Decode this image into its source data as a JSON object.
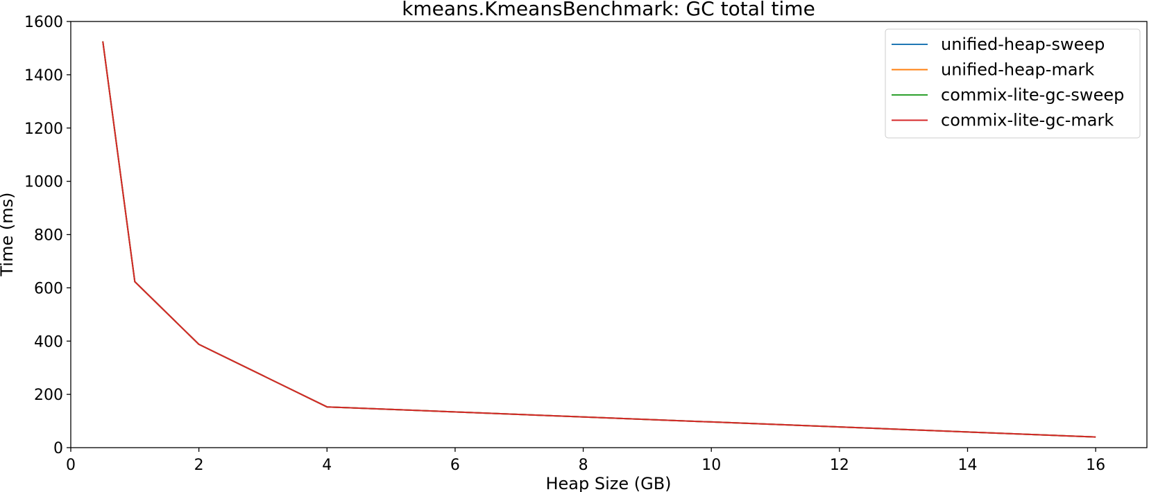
{
  "chart_data": {
    "type": "line",
    "title": "kmeans.KmeansBenchmark: GC total time",
    "xlabel": "Heap Size (GB)",
    "ylabel": "Time (ms)",
    "xlim": [
      0,
      16.8
    ],
    "ylim": [
      0,
      1600
    ],
    "xticks": [
      "0",
      "2",
      "4",
      "6",
      "8",
      "10",
      "12",
      "14",
      "16"
    ],
    "yticks": [
      "0",
      "200",
      "400",
      "600",
      "800",
      "1000",
      "1200",
      "1400",
      "1600"
    ],
    "grid": false,
    "legend_position": "top-right",
    "x": [
      0.5,
      1,
      2,
      4,
      16
    ],
    "series": [
      {
        "name": "unified-heap-sweep",
        "color": "#1f77b4",
        "values": [
          1525,
          623,
          388,
          153,
          40
        ]
      },
      {
        "name": "unified-heap-mark",
        "color": "#ff7f0e",
        "values": [
          1525,
          623,
          388,
          153,
          40
        ]
      },
      {
        "name": "commix-lite-gc-sweep",
        "color": "#2ca02c",
        "values": [
          1525,
          623,
          388,
          153,
          40
        ]
      },
      {
        "name": "commix-lite-gc-mark",
        "color": "#d62728",
        "values": [
          1525,
          623,
          388,
          153,
          40
        ]
      }
    ]
  }
}
